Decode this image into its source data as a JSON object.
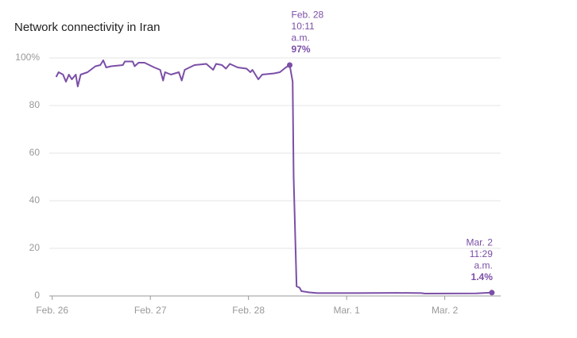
{
  "chart_data": {
    "type": "line",
    "title": "Network connectivity in Iran",
    "xlim": [
      -0.03,
      4.57
    ],
    "xticks": [
      {
        "value": 0,
        "label": "Feb. 26"
      },
      {
        "value": 1,
        "label": "Feb. 27"
      },
      {
        "value": 2,
        "label": "Feb. 28"
      },
      {
        "value": 3,
        "label": "Mar. 1"
      },
      {
        "value": 4,
        "label": "Mar. 2"
      }
    ],
    "ylim": [
      0,
      100
    ],
    "yticks": [
      0,
      20,
      40,
      60,
      80,
      {
        "value": 100,
        "label": "100%"
      }
    ],
    "grid": true,
    "series": [
      {
        "color": "#7b4fa6",
        "x": [
          0.04,
          0.065,
          0.11,
          0.14,
          0.17,
          0.2,
          0.24,
          0.26,
          0.29,
          0.36,
          0.44,
          0.49,
          0.52,
          0.55,
          0.6,
          0.72,
          0.74,
          0.82,
          0.84,
          0.88,
          0.94,
          1.04,
          1.1,
          1.13,
          1.15,
          1.21,
          1.29,
          1.32,
          1.35,
          1.45,
          1.57,
          1.64,
          1.67,
          1.73,
          1.77,
          1.81,
          1.89,
          1.98,
          2.02,
          2.04,
          2.1,
          2.14,
          2.26,
          2.32,
          2.38,
          2.42,
          2.45,
          2.46,
          2.49,
          2.52,
          2.54,
          2.62,
          2.7,
          3.11,
          3.51,
          3.76,
          3.8,
          4.32,
          4.48
        ],
        "values": [
          92,
          94,
          93,
          90,
          93,
          91,
          93,
          88,
          93,
          94,
          96.5,
          97,
          99,
          96,
          96.5,
          97,
          98.5,
          98.5,
          96.5,
          98,
          98,
          96,
          95,
          90.5,
          94,
          93,
          94,
          90.5,
          95,
          97,
          97.5,
          95,
          97.5,
          97,
          95.5,
          97.5,
          96,
          95.5,
          94,
          95,
          91,
          93,
          93.5,
          94,
          96,
          97,
          90,
          50,
          4,
          3.5,
          2,
          1.5,
          1.2,
          1.2,
          1.3,
          1.2,
          1,
          1.1,
          1.4
        ]
      }
    ],
    "annotations": [
      {
        "lines": [
          "Feb. 28",
          "10:11",
          "a.m."
        ],
        "label": "97%",
        "x": 2.42,
        "y": 97
      },
      {
        "lines": [
          "Mar. 2",
          "11:29",
          "a.m."
        ],
        "label": "1.4%",
        "x": 4.48,
        "y": 1.4
      }
    ]
  }
}
